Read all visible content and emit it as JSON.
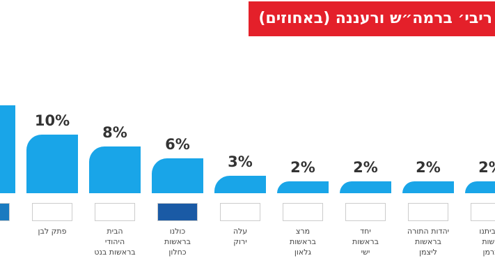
{
  "chart_data": {
    "type": "bar",
    "title": "ריבי׳ ברמה״ש ורעננה (באחוזים)",
    "categories": [
      null,
      "פתק לבן",
      "הבית\nהיהודי\nבראשות בנט",
      "כולנו\nבראשות\nכחלון",
      "עלה\nירוק",
      "מרצ\nבראשות\nגלאון",
      "יחד\nבראשות\nישי",
      "יהדות התורה\nבראשות\nליצמן",
      "ל ביתנו\nאשות\nברמן"
    ],
    "values": [
      15,
      10,
      8,
      6,
      3,
      2,
      2,
      2,
      2
    ],
    "value_labels": [
      "%",
      "10%",
      "8%",
      "6%",
      "3%",
      "2%",
      "2%",
      "2%",
      "2%"
    ],
    "color": "#19a5e8"
  }
}
